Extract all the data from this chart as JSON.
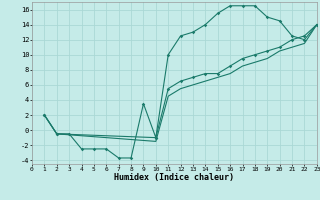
{
  "xlabel": "Humidex (Indice chaleur)",
  "bg_color": "#c5ebe8",
  "grid_color": "#aad8d5",
  "line_color": "#1a7a6a",
  "xlim": [
    0,
    23
  ],
  "ylim": [
    -4.5,
    17.0
  ],
  "yticks": [
    -4,
    -2,
    0,
    2,
    4,
    6,
    8,
    10,
    12,
    14,
    16
  ],
  "xticks": [
    0,
    1,
    2,
    3,
    4,
    5,
    6,
    7,
    8,
    9,
    10,
    11,
    12,
    13,
    14,
    15,
    16,
    17,
    18,
    19,
    20,
    21,
    22,
    23
  ],
  "line1_x": [
    1,
    2,
    3,
    4,
    5,
    6,
    7,
    8,
    9,
    10,
    11,
    12,
    13,
    14,
    15,
    16,
    17,
    18,
    19,
    20,
    21,
    22,
    23
  ],
  "line1_y": [
    2.0,
    -0.5,
    -0.5,
    -2.5,
    -2.5,
    -2.5,
    -3.7,
    -3.7,
    3.5,
    -1.0,
    10.0,
    12.5,
    13.0,
    14.0,
    15.5,
    16.5,
    16.5,
    16.5,
    15.0,
    14.5,
    12.5,
    12.0,
    14.0
  ],
  "line2_x": [
    1,
    2,
    10,
    11,
    12,
    13,
    14,
    15,
    16,
    17,
    18,
    19,
    20,
    21,
    22,
    23
  ],
  "line2_y": [
    2.0,
    -0.5,
    -1.0,
    5.5,
    6.5,
    7.0,
    7.5,
    7.5,
    8.5,
    9.5,
    10.0,
    10.5,
    11.0,
    12.0,
    12.5,
    14.0
  ],
  "line3_x": [
    1,
    2,
    10,
    11,
    12,
    13,
    14,
    15,
    16,
    17,
    18,
    19,
    20,
    21,
    22,
    23
  ],
  "line3_y": [
    2.0,
    -0.5,
    -1.5,
    4.5,
    5.5,
    6.0,
    6.5,
    7.0,
    7.5,
    8.5,
    9.0,
    9.5,
    10.5,
    11.0,
    11.5,
    14.0
  ]
}
